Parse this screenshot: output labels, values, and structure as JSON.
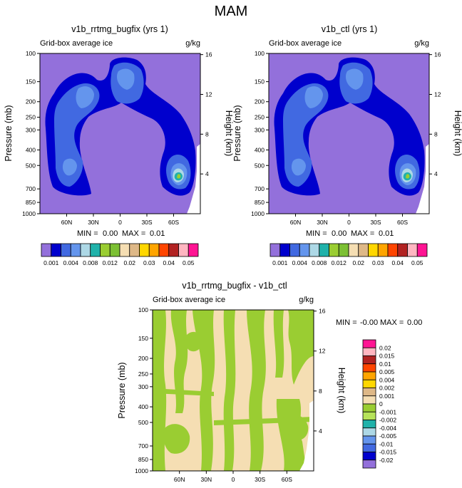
{
  "figure": {
    "title": "MAM"
  },
  "colors": {
    "frame": "#000000",
    "background": "#ffffff"
  },
  "chart_data": [
    {
      "type": "heatmap",
      "title": "v1b_rrtmg_bugfix (yrs 1)",
      "subtitle": "Grid-box average ice",
      "units": "g/kg",
      "xlabel": "",
      "ylabel": "Pressure (mb)",
      "y2label": "Height (km)",
      "x_ticks": [
        "60N",
        "30N",
        "0",
        "30S",
        "60S"
      ],
      "x_tick_values": [
        60,
        30,
        0,
        -30,
        -60
      ],
      "xlim": [
        90,
        -90
      ],
      "y_ticks": [
        "100",
        "150",
        "200",
        "250",
        "300",
        "400",
        "500",
        "700",
        "850",
        "1000"
      ],
      "y_tick_values": [
        100,
        150,
        200,
        250,
        300,
        400,
        500,
        700,
        850,
        1000
      ],
      "ylim": [
        100,
        1000
      ],
      "yscale": "log",
      "y2_ticks": [
        "16",
        "12",
        "8",
        "4"
      ],
      "y2_tick_values": [
        16,
        12,
        8,
        4
      ],
      "min_label": "MIN =",
      "min_value": "0.00",
      "max_label": "MAX =",
      "max_value": "0.01",
      "colorbar": {
        "orientation": "horizontal",
        "labels": [
          "0.001",
          "0.004",
          "0.008",
          "0.012",
          "0.02",
          "0.03",
          "0.04",
          "0.05"
        ],
        "levels": [
          0.001,
          0.002,
          0.004,
          0.006,
          0.008,
          0.01,
          0.012,
          0.015,
          0.02,
          0.025,
          0.03,
          0.035,
          0.04,
          0.045,
          0.05
        ],
        "colors": [
          "#9370db",
          "#0000cd",
          "#4169e1",
          "#6495ed",
          "#add8e6",
          "#20b2aa",
          "#9acd32",
          "#7cc033",
          "#f5deb3",
          "#deb887",
          "#ffd700",
          "#ffa500",
          "#ff4500",
          "#b22222",
          "#ffb6c1",
          "#ff1493"
        ]
      }
    },
    {
      "type": "heatmap",
      "title": "v1b_ctl (yrs 1)",
      "subtitle": "Grid-box average ice",
      "units": "g/kg",
      "xlabel": "",
      "ylabel": "Pressure (mb)",
      "y2label": "Height (km)",
      "x_ticks": [
        "60N",
        "30N",
        "0",
        "30S",
        "60S"
      ],
      "x_tick_values": [
        60,
        30,
        0,
        -30,
        -60
      ],
      "xlim": [
        90,
        -90
      ],
      "y_ticks": [
        "100",
        "150",
        "200",
        "250",
        "300",
        "400",
        "500",
        "700",
        "850",
        "1000"
      ],
      "y_tick_values": [
        100,
        150,
        200,
        250,
        300,
        400,
        500,
        700,
        850,
        1000
      ],
      "ylim": [
        100,
        1000
      ],
      "yscale": "log",
      "y2_ticks": [
        "16",
        "12",
        "8",
        "4"
      ],
      "y2_tick_values": [
        16,
        12,
        8,
        4
      ],
      "min_label": "MIN =",
      "min_value": "0.00",
      "max_label": "MAX =",
      "max_value": "0.01"
    },
    {
      "type": "heatmap",
      "title": "v1b_rrtmg_bugfix - v1b_ctl",
      "subtitle": "Grid-box average ice",
      "units": "g/kg",
      "xlabel": "",
      "ylabel": "Pressure (mb)",
      "y2label": "Height (km)",
      "x_ticks": [
        "60N",
        "30N",
        "0",
        "30S",
        "60S"
      ],
      "x_tick_values": [
        60,
        30,
        0,
        -30,
        -60
      ],
      "xlim": [
        90,
        -90
      ],
      "y_ticks": [
        "100",
        "150",
        "200",
        "250",
        "300",
        "400",
        "500",
        "700",
        "850",
        "1000"
      ],
      "y_tick_values": [
        100,
        150,
        200,
        250,
        300,
        400,
        500,
        700,
        850,
        1000
      ],
      "ylim": [
        100,
        1000
      ],
      "yscale": "log",
      "y2_ticks": [
        "16",
        "12",
        "8",
        "4"
      ],
      "y2_tick_values": [
        16,
        12,
        8,
        4
      ],
      "min_label": "MIN =",
      "min_value": "-0.00",
      "max_label": "MAX =",
      "max_value": "0.00",
      "colorbar": {
        "orientation": "vertical",
        "labels": [
          "0.02",
          "0.015",
          "0.01",
          "0.005",
          "0.004",
          "0.002",
          "0.001",
          "0",
          "-0.001",
          "-0.002",
          "-0.004",
          "-0.005",
          "-0.01",
          "-0.015",
          "-0.02"
        ],
        "colors": [
          "#ff1493",
          "#ffb6c1",
          "#b22222",
          "#ff4500",
          "#ffa500",
          "#ffd700",
          "#deb887",
          "#f5deb3",
          "#9acd32",
          "#b6e35a",
          "#20b2aa",
          "#add8e6",
          "#6495ed",
          "#4169e1",
          "#0000cd",
          "#9370db"
        ]
      }
    }
  ]
}
